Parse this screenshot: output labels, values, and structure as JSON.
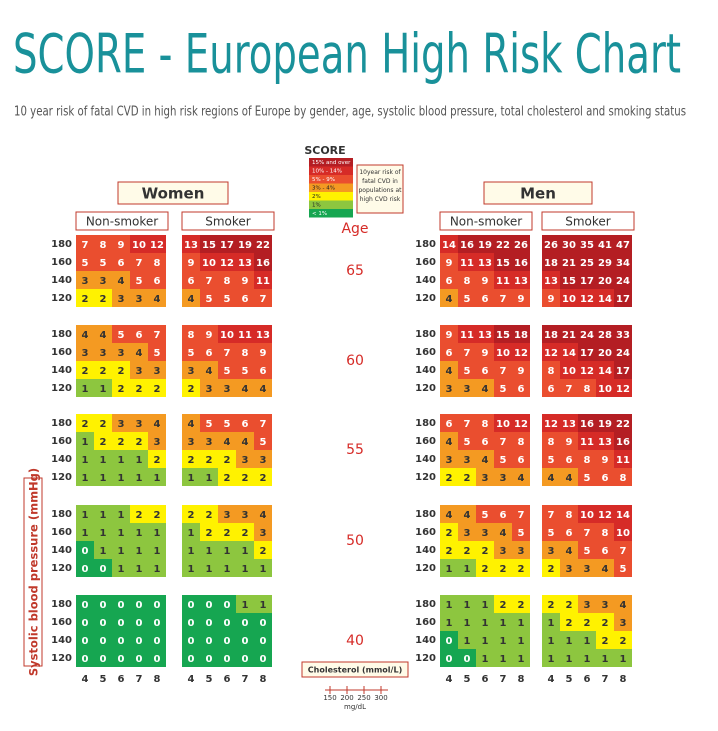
{
  "header": {
    "title": "SCORE - European High Risk Chart",
    "subtitle": "10 year risk of fatal CVD in high risk regions of Europe by gender, age, systolic blood pressure, total cholesterol and smoking status"
  },
  "legend": {
    "title": "SCORE",
    "note": "10year risk of fatal CVD in populations at high CVD risk",
    "items": [
      {
        "label": "15% and over",
        "color": "#b41e23",
        "min": 15
      },
      {
        "label": "10% - 14%",
        "color": "#d62b27",
        "min": 10
      },
      {
        "label": "5% - 9%",
        "color": "#ea4e2f",
        "min": 5
      },
      {
        "label": "3% - 4%",
        "color": "#f49a22",
        "min": 3
      },
      {
        "label": "2%",
        "color": "#fff200",
        "min": 2
      },
      {
        "label": "1%",
        "color": "#8dc63f",
        "min": 1
      },
      {
        "label": "< 1%",
        "color": "#16a651",
        "min": 0
      }
    ]
  },
  "groups": [
    {
      "label": "Women",
      "panels": [
        "Non-smoker",
        "Smoker"
      ]
    },
    {
      "label": "Men",
      "panels": [
        "Non-smoker",
        "Smoker"
      ]
    }
  ],
  "age_label": "Age",
  "y_label": "Systolic blood pressure (mmHg)",
  "x_label": "Cholesterol (mmol/L)",
  "mg_ticks": [
    "150",
    "200",
    "250",
    "300"
  ],
  "mg_unit": "mg/dL",
  "sbp": [
    180,
    160,
    140,
    120
  ],
  "chol": [
    4,
    5,
    6,
    7,
    8
  ],
  "ages": [
    {
      "label": "65",
      "panels": [
        [
          [
            7,
            8,
            9,
            10,
            12
          ],
          [
            5,
            5,
            6,
            7,
            8
          ],
          [
            3,
            3,
            4,
            5,
            6
          ],
          [
            2,
            2,
            3,
            3,
            4
          ]
        ],
        [
          [
            13,
            15,
            17,
            19,
            22
          ],
          [
            9,
            10,
            12,
            13,
            16
          ],
          [
            6,
            7,
            8,
            9,
            11
          ],
          [
            4,
            5,
            5,
            6,
            7
          ]
        ],
        [
          [
            14,
            16,
            19,
            22,
            26
          ],
          [
            9,
            11,
            13,
            15,
            16
          ],
          [
            6,
            8,
            9,
            11,
            13
          ],
          [
            4,
            5,
            6,
            7,
            9
          ]
        ],
        [
          [
            26,
            30,
            35,
            41,
            47
          ],
          [
            18,
            21,
            25,
            29,
            34
          ],
          [
            13,
            15,
            17,
            20,
            24
          ],
          [
            9,
            10,
            12,
            14,
            17
          ]
        ]
      ]
    },
    {
      "label": "60",
      "panels": [
        [
          [
            4,
            4,
            5,
            6,
            7
          ],
          [
            3,
            3,
            3,
            4,
            5
          ],
          [
            2,
            2,
            2,
            3,
            3
          ],
          [
            1,
            1,
            2,
            2,
            2
          ]
        ],
        [
          [
            8,
            9,
            10,
            11,
            13
          ],
          [
            5,
            6,
            7,
            8,
            9
          ],
          [
            3,
            4,
            5,
            5,
            6
          ],
          [
            2,
            3,
            3,
            4,
            4
          ]
        ],
        [
          [
            9,
            11,
            13,
            15,
            18
          ],
          [
            6,
            7,
            9,
            10,
            12
          ],
          [
            4,
            5,
            6,
            7,
            9
          ],
          [
            3,
            3,
            4,
            5,
            6
          ]
        ],
        [
          [
            18,
            21,
            24,
            28,
            33
          ],
          [
            12,
            14,
            17,
            20,
            24
          ],
          [
            8,
            10,
            12,
            14,
            17
          ],
          [
            6,
            7,
            8,
            10,
            12
          ]
        ]
      ]
    },
    {
      "label": "55",
      "panels": [
        [
          [
            2,
            2,
            3,
            3,
            4
          ],
          [
            1,
            2,
            2,
            2,
            3
          ],
          [
            1,
            1,
            1,
            1,
            2
          ],
          [
            1,
            1,
            1,
            1,
            1
          ]
        ],
        [
          [
            4,
            5,
            5,
            6,
            7
          ],
          [
            3,
            3,
            4,
            4,
            5
          ],
          [
            2,
            2,
            2,
            3,
            3
          ],
          [
            1,
            1,
            2,
            2,
            2
          ]
        ],
        [
          [
            6,
            7,
            8,
            10,
            12
          ],
          [
            4,
            5,
            6,
            7,
            8
          ],
          [
            3,
            3,
            4,
            5,
            6
          ],
          [
            2,
            2,
            3,
            3,
            4
          ]
        ],
        [
          [
            12,
            13,
            16,
            19,
            22
          ],
          [
            8,
            9,
            11,
            13,
            16
          ],
          [
            5,
            6,
            8,
            9,
            11
          ],
          [
            4,
            4,
            5,
            6,
            8
          ]
        ]
      ]
    },
    {
      "label": "50",
      "panels": [
        [
          [
            1,
            1,
            1,
            2,
            2
          ],
          [
            1,
            1,
            1,
            1,
            1
          ],
          [
            0,
            1,
            1,
            1,
            1
          ],
          [
            0,
            0,
            1,
            1,
            1
          ]
        ],
        [
          [
            2,
            2,
            3,
            3,
            4
          ],
          [
            1,
            2,
            2,
            2,
            3
          ],
          [
            1,
            1,
            1,
            1,
            2
          ],
          [
            1,
            1,
            1,
            1,
            1
          ]
        ],
        [
          [
            4,
            4,
            5,
            6,
            7
          ],
          [
            2,
            3,
            3,
            4,
            5
          ],
          [
            2,
            2,
            2,
            3,
            3
          ],
          [
            1,
            1,
            2,
            2,
            2
          ]
        ],
        [
          [
            7,
            8,
            10,
            12,
            14
          ],
          [
            5,
            6,
            7,
            8,
            10
          ],
          [
            3,
            4,
            5,
            6,
            7
          ],
          [
            2,
            3,
            3,
            4,
            5
          ]
        ]
      ]
    },
    {
      "label": "40",
      "panels": [
        [
          [
            0,
            0,
            0,
            0,
            0
          ],
          [
            0,
            0,
            0,
            0,
            0
          ],
          [
            0,
            0,
            0,
            0,
            0
          ],
          [
            0,
            0,
            0,
            0,
            0
          ]
        ],
        [
          [
            0,
            0,
            0,
            1,
            1
          ],
          [
            0,
            0,
            0,
            0,
            0
          ],
          [
            0,
            0,
            0,
            0,
            0
          ],
          [
            0,
            0,
            0,
            0,
            0
          ]
        ],
        [
          [
            1,
            1,
            1,
            2,
            2
          ],
          [
            1,
            1,
            1,
            1,
            1
          ],
          [
            0,
            1,
            1,
            1,
            1
          ],
          [
            0,
            0,
            1,
            1,
            1
          ]
        ],
        [
          [
            2,
            2,
            3,
            3,
            4
          ],
          [
            1,
            2,
            2,
            2,
            3
          ],
          [
            1,
            1,
            1,
            2,
            2
          ],
          [
            1,
            1,
            1,
            1,
            1
          ]
        ]
      ]
    }
  ]
}
